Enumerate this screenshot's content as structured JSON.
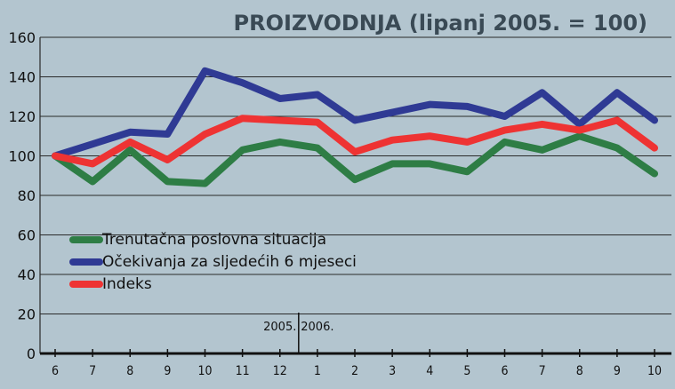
{
  "chart_data": {
    "type": "line",
    "title": "PROIZVODNJA (lipanj 2005. = 100)",
    "xlabel": "",
    "ylabel": "",
    "categories": [
      "6",
      "7",
      "8",
      "9",
      "10",
      "11",
      "12",
      "1",
      "2",
      "3",
      "4",
      "5",
      "6",
      "7",
      "8",
      "9",
      "10"
    ],
    "year_labels": [
      {
        "label": "2005.",
        "at_index": 6
      },
      {
        "label": "2006.",
        "at_index": 7
      }
    ],
    "ylim": [
      0,
      160
    ],
    "yticks": [
      0,
      20,
      40,
      60,
      80,
      100,
      120,
      140,
      160
    ],
    "grid": true,
    "legend_position": "bottom-left",
    "series": [
      {
        "name": "Trenutačna poslovna situacija",
        "color": "#2e7d45",
        "values": [
          100,
          87,
          103,
          87,
          86,
          103,
          107,
          104,
          88,
          96,
          96,
          92,
          107,
          103,
          110,
          104,
          91
        ]
      },
      {
        "name": "Očekivanja za sljedećih 6 mjeseci",
        "color": "#2f3a94",
        "values": [
          100,
          106,
          112,
          111,
          143,
          137,
          129,
          131,
          118,
          122,
          126,
          125,
          120,
          132,
          116,
          132,
          118
        ]
      },
      {
        "name": "Indeks",
        "color": "#ee3333",
        "values": [
          100,
          96,
          107,
          98,
          111,
          119,
          118,
          117,
          102,
          108,
          110,
          107,
          113,
          116,
          113,
          118,
          104
        ]
      }
    ]
  }
}
